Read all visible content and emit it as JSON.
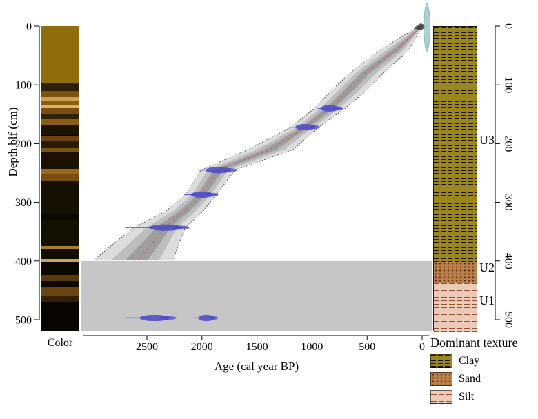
{
  "chart_data": {
    "type": "line",
    "xlabel": "Age (cal year BP)",
    "ylabel": "Depth blf (cm)",
    "x_ticks": [
      2500,
      2000,
      1500,
      1000,
      500,
      0
    ],
    "y_ticks": [
      0,
      100,
      200,
      300,
      400,
      500
    ],
    "xlim": [
      3100,
      -80
    ],
    "ylim": [
      0,
      520
    ],
    "x_axis_reversed": true,
    "y_axis_reversed": true,
    "model_median": {
      "depths": [
        0,
        40,
        80,
        115,
        140,
        172,
        210,
        245,
        287,
        315,
        343,
        370,
        398
      ],
      "ages": [
        5,
        230,
        520,
        700,
        840,
        1060,
        1380,
        1850,
        2000,
        2160,
        2340,
        2450,
        2580
      ]
    },
    "model_ci": {
      "depths": [
        0,
        40,
        80,
        115,
        140,
        172,
        210,
        245,
        287,
        315,
        343,
        370,
        398
      ],
      "age_min": [
        0,
        120,
        350,
        540,
        700,
        940,
        1170,
        1700,
        1870,
        1990,
        2150,
        2210,
        2260
      ],
      "age_max": [
        25,
        380,
        660,
        850,
        980,
        1190,
        1580,
        2010,
        2150,
        2330,
        2620,
        2800,
        2980
      ]
    },
    "calibrated_dates": [
      {
        "depth": 140,
        "age_min": 720,
        "age_peak": 840,
        "age_max": 950
      },
      {
        "depth": 172,
        "age_min": 930,
        "age_peak": 1060,
        "age_max": 1190
      },
      {
        "depth": 245,
        "age_min": 1680,
        "age_peak": 1850,
        "age_max": 2030
      },
      {
        "depth": 287,
        "age_min": 1860,
        "age_peak": 2000,
        "age_max": 2160
      },
      {
        "depth": 343,
        "age_min": 2130,
        "age_peak": 2330,
        "age_max": 2700
      },
      {
        "depth": 497,
        "age_min": 2280,
        "age_peak": 2430,
        "age_max": 2700
      },
      {
        "depth": 497,
        "age_min": 1880,
        "age_peak": 1960,
        "age_max": 2070
      }
    ],
    "surface_date": {
      "age": -44,
      "depth_from": -38,
      "depth_to": 42
    },
    "excluded_zone": {
      "depth_from": 400,
      "depth_to": 520
    },
    "colors": {
      "median_line": "#c76a6a",
      "envelope_outer": "#d8d8d8",
      "envelope_mid": "#bdbdbd",
      "envelope_inner": "#9e9e9e",
      "boundary_dotted": "#4a4a4a",
      "date_fill": "#4a4ac8",
      "surface_fill": "#a7cdd6",
      "excluded_fill": "#c6c6c6",
      "axis": "#000000"
    }
  },
  "core_color_column": {
    "label": "Color",
    "bands": [
      {
        "from": 0,
        "to": 96,
        "color": "#8f6d0b"
      },
      {
        "from": 96,
        "to": 110,
        "color": "#2f1f05"
      },
      {
        "from": 110,
        "to": 121,
        "color": "#7a5410"
      },
      {
        "from": 121,
        "to": 127,
        "color": "#c9a24a"
      },
      {
        "from": 127,
        "to": 134,
        "color": "#8a5e14"
      },
      {
        "from": 134,
        "to": 139,
        "color": "#d8b560"
      },
      {
        "from": 139,
        "to": 149,
        "color": "#7a4e10"
      },
      {
        "from": 149,
        "to": 158,
        "color": "#332106"
      },
      {
        "from": 158,
        "to": 168,
        "color": "#8a5e14"
      },
      {
        "from": 168,
        "to": 186,
        "color": "#1f1303"
      },
      {
        "from": 186,
        "to": 196,
        "color": "#6b4410"
      },
      {
        "from": 196,
        "to": 208,
        "color": "#2a1a04"
      },
      {
        "from": 208,
        "to": 215,
        "color": "#7a5410"
      },
      {
        "from": 215,
        "to": 243,
        "color": "#1a1103"
      },
      {
        "from": 243,
        "to": 252,
        "color": "#9a6a1a"
      },
      {
        "from": 252,
        "to": 263,
        "color": "#7a4e10"
      },
      {
        "from": 263,
        "to": 320,
        "color": "#161002"
      },
      {
        "from": 320,
        "to": 330,
        "color": "#0d0901"
      },
      {
        "from": 330,
        "to": 374,
        "color": "#141002"
      },
      {
        "from": 374,
        "to": 379,
        "color": "#a87e2a"
      },
      {
        "from": 379,
        "to": 397,
        "color": "#120c01"
      },
      {
        "from": 397,
        "to": 402,
        "color": "#caa258"
      },
      {
        "from": 402,
        "to": 424,
        "color": "#0d0801"
      },
      {
        "from": 424,
        "to": 434,
        "color": "#5a3a0c"
      },
      {
        "from": 434,
        "to": 444,
        "color": "#0d0801"
      },
      {
        "from": 444,
        "to": 459,
        "color": "#6b4410"
      },
      {
        "from": 459,
        "to": 470,
        "color": "#32200a"
      },
      {
        "from": 470,
        "to": 520,
        "color": "#090601"
      }
    ]
  },
  "lithology": {
    "title": "Dominant texture",
    "units": [
      {
        "label": "U3",
        "texture": "clay",
        "depth_from": 0,
        "depth_to": 400,
        "label_depth": 195
      },
      {
        "label": "U2",
        "texture": "sand",
        "depth_from": 400,
        "depth_to": 437,
        "label_depth": 412
      },
      {
        "label": "U1",
        "texture": "silt",
        "depth_from": 437,
        "depth_to": 520,
        "label_depth": 468
      }
    ],
    "legend": [
      {
        "label": "Clay",
        "texture": "clay"
      },
      {
        "label": "Sand",
        "texture": "sand"
      },
      {
        "label": "Silt",
        "texture": "silt"
      }
    ]
  }
}
